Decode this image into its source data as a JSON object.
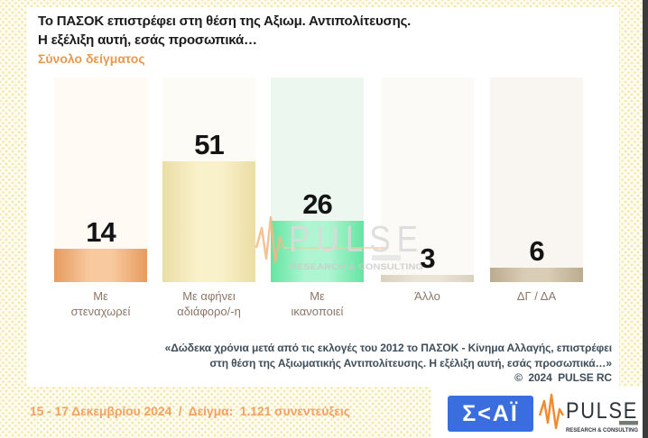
{
  "page": {
    "background": "#FDFAEE",
    "dot_color": "#F0E5A4",
    "edge_strip_color": "#3B3B3B"
  },
  "header": {
    "title_line1": "Το ΠΑΣΟΚ επιστρέφει στη θέση της Αξιωμ. Αντιπολίτευσης.",
    "title_line2": "Η εξέλιξη αυτή, εσάς προσωπικά…",
    "subtitle": "Σύνολο δείγματος",
    "subtitle_color": "#E8994E"
  },
  "chart_data": {
    "type": "bar",
    "title": "Το ΠΑΣΟΚ επιστρέφει στη θέση της Αξιωμ. Αντιπολίτευσης. Η εξέλιξη αυτή, εσάς προσωπικά…",
    "subtitle": "Σύνολο δείγματος",
    "categories": [
      "Με στεναχωρεί",
      "Με αφήνει αδιάφορο/-η",
      "Με ικανοποιεί",
      "Άλλο",
      "ΔΓ / ΔΑ"
    ],
    "category_lines": [
      [
        "Με",
        "στεναχωρεί"
      ],
      [
        "Με αφήνει",
        "αδιάφορο/-η"
      ],
      [
        "Με",
        "ικανοποιεί"
      ],
      [
        "Άλλο"
      ],
      [
        "ΔΓ / ΔΑ"
      ]
    ],
    "values": [
      14,
      51,
      26,
      3,
      6
    ],
    "value_labels": [
      "14",
      "51",
      "26",
      "3",
      "6"
    ],
    "ylim": [
      0,
      86
    ],
    "grid": false,
    "legend": false,
    "bar_colors": [
      {
        "edge": "#E79B5F",
        "mid": "#F8C99E"
      },
      {
        "edge": "#EADEA5",
        "mid": "#F9F1CA"
      },
      {
        "edge": "#63E5A1",
        "mid": "#AFF5D2"
      },
      {
        "edge": "#D9D0BE",
        "mid": "#EAE4D7"
      },
      {
        "edge": "#BCAB8F",
        "mid": "#D9CDB5"
      }
    ],
    "track_colors": [
      "#FFFBF4",
      "#FDFBF6",
      "#ECF7F0",
      "#FBFAF7",
      "#F9F6F1"
    ],
    "value_label_color": "#141414",
    "category_label_color": "#8D7668"
  },
  "watermark": {
    "brand": "PULSE",
    "tagline": "RESEARCH & CONSULTING"
  },
  "footnote": {
    "line1": "«Δώδεκα χρόνια μετά από τις εκλογές του 2012 το ΠΑΣΟΚ - Κίνημα Αλλαγής, επιστρέφει",
    "line2": "στη θέση της Αξιωματικής Αντιπολίτευσης. Η εξέλιξη αυτή, εσάς προσωπικά…»",
    "copyright": "©  2024  PULSE RC",
    "color": "#3E4E5B"
  },
  "footer": {
    "fieldwork": "15 - 17 Δεκεμβρίου 2024  /  Δείγμα:  1.121 συνεντεύξεις",
    "fieldwork_color": "#F2A262",
    "skai": {
      "text": "Σ<ΑΪ",
      "bg": "#3A6EDF"
    },
    "pulse": {
      "brand": "PULSE",
      "tagline": "RESEARCH & CONSULTING",
      "accent": "#F08A2C",
      "ink": "#2E3338"
    }
  }
}
